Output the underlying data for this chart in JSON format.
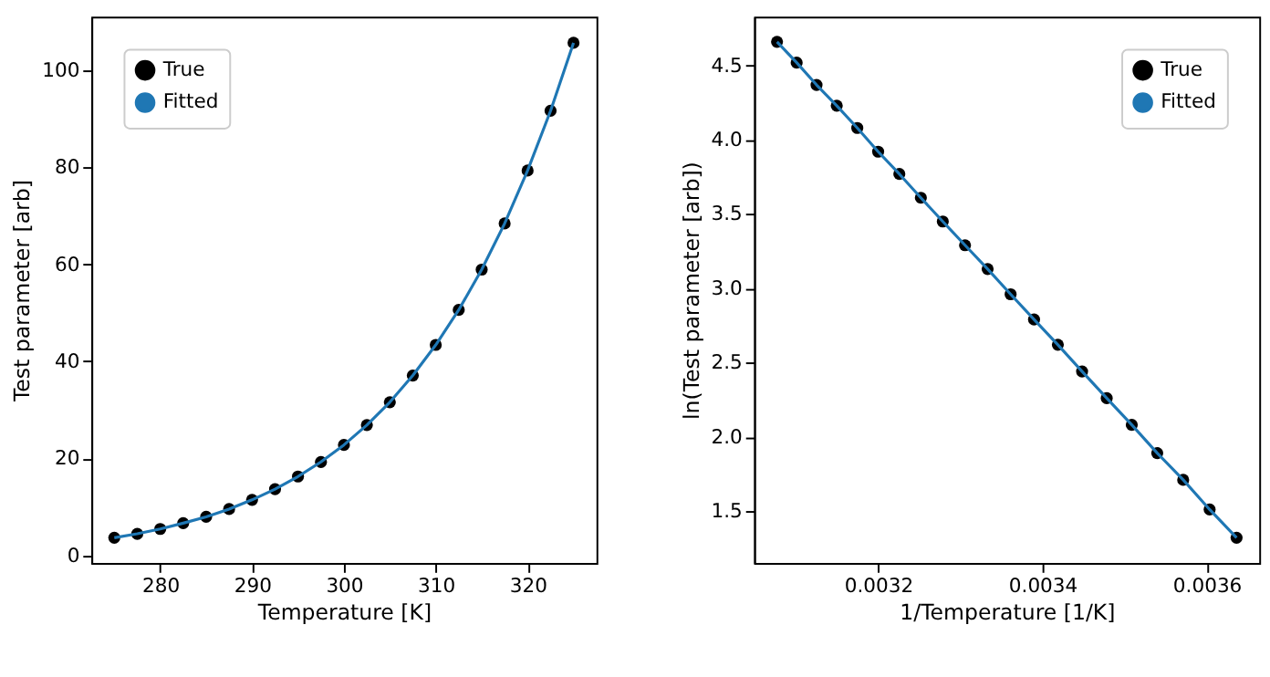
{
  "chart_data": [
    {
      "type": "scatter",
      "xlabel": "Temperature [K]",
      "ylabel": "Test parameter [arb]",
      "legend": "top left",
      "grid": false,
      "xlim": [
        272.5,
        327.5
      ],
      "ylim": [
        -1.5,
        111
      ],
      "xticks": [
        280,
        290,
        300,
        310,
        320
      ],
      "yticks": [
        0,
        20,
        40,
        60,
        80,
        100
      ],
      "x": [
        275,
        277.5,
        280,
        282.5,
        285,
        287.5,
        290,
        292.5,
        295,
        297.5,
        300,
        302.5,
        305,
        307.5,
        310,
        312.5,
        315,
        317.5,
        320,
        322.5,
        325
      ],
      "series": [
        {
          "name": "True",
          "marker": "circle",
          "color": "#000000",
          "values": [
            3.7,
            4.5,
            5.5,
            6.7,
            8.0,
            9.6,
            11.5,
            13.7,
            16.3,
            19.3,
            22.8,
            26.9,
            31.6,
            37.1,
            43.4,
            50.6,
            58.9,
            68.4,
            79.3,
            91.6,
            105.6
          ]
        },
        {
          "name": "Fitted",
          "type": "line",
          "color": "#1f77b4",
          "values": [
            3.7,
            4.5,
            5.5,
            6.7,
            8.0,
            9.6,
            11.5,
            13.7,
            16.3,
            19.3,
            22.8,
            26.9,
            31.6,
            37.1,
            43.4,
            50.6,
            58.9,
            68.4,
            79.3,
            91.6,
            105.6
          ]
        }
      ]
    },
    {
      "type": "scatter",
      "xlabel": "1/Temperature [1/K]",
      "ylabel": "ln(Test parameter [arb])",
      "legend": "top right",
      "grid": false,
      "xlim": [
        0.003049,
        0.003664
      ],
      "ylim": [
        1.15,
        4.83
      ],
      "xticks": [
        0.0032,
        0.0034,
        0.0036
      ],
      "yticks": [
        {
          "value": 1.5,
          "label": "1.5"
        },
        {
          "value": 2,
          "label": "2.0"
        },
        {
          "value": 2.5,
          "label": "2.5"
        },
        {
          "value": 3,
          "label": "3.0"
        },
        {
          "value": 3.5,
          "label": "3.5"
        },
        {
          "value": 4,
          "label": "4.0"
        },
        {
          "value": 4.5,
          "label": "4.5"
        }
      ],
      "x": [
        0.0036364,
        0.0036036,
        0.0035714,
        0.0035398,
        0.0035088,
        0.0034783,
        0.0034483,
        0.0034188,
        0.0033898,
        0.0033613,
        0.0033333,
        0.0033058,
        0.0032787,
        0.003252,
        0.0032258,
        0.0032,
        0.0031746,
        0.0031496,
        0.003125,
        0.0031008,
        0.0030769
      ],
      "series": [
        {
          "name": "True",
          "marker": "circle",
          "color": "#000000",
          "values": [
            1.32,
            1.51,
            1.71,
            1.89,
            2.08,
            2.26,
            2.44,
            2.62,
            2.79,
            2.96,
            3.13,
            3.29,
            3.45,
            3.61,
            3.77,
            3.92,
            4.08,
            4.23,
            4.37,
            4.52,
            4.66
          ]
        },
        {
          "name": "Fitted",
          "type": "line",
          "color": "#1f77b4",
          "values": [
            1.32,
            1.51,
            1.71,
            1.89,
            2.08,
            2.26,
            2.44,
            2.62,
            2.79,
            2.96,
            3.13,
            3.29,
            3.45,
            3.61,
            3.77,
            3.92,
            4.08,
            4.23,
            4.37,
            4.52,
            4.66
          ]
        }
      ]
    }
  ]
}
